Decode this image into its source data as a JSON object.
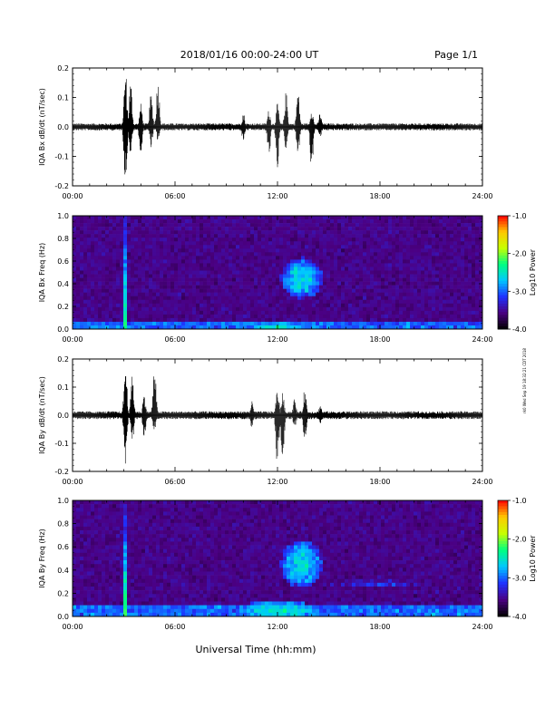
{
  "header": {
    "title": "2018/01/16  00:00-24:00 UT",
    "page": "Page 1/1"
  },
  "side_note": "rk0 Wed Sep 19 18:32:21 CDT 2018",
  "xaxis": {
    "label": "Universal Time (hh:mm)",
    "tick_labels": [
      "00:00",
      "06:00",
      "12:00",
      "18:00",
      "24:00"
    ],
    "range_hours": [
      0,
      24
    ]
  },
  "colors": {
    "trace": "#000000",
    "spectrogram_background": "#3a1a9c"
  },
  "chart_data": [
    {
      "type": "line",
      "name": "bx_dbdt",
      "ylabel": "IQA Bx dB/dt (nT/sec)",
      "ylim": [
        -0.2,
        0.2
      ],
      "ytick_labels": [
        "0.2",
        "0.1",
        "0.0",
        "-0.1",
        "-0.2"
      ],
      "ytick_values": [
        0.2,
        0.1,
        0.0,
        -0.1,
        -0.2
      ],
      "baseline_amplitude": 0.012,
      "bursts": [
        {
          "t": 3.1,
          "pos": 0.2,
          "neg": -0.2
        },
        {
          "t": 3.4,
          "pos": 0.16,
          "neg": -0.1
        },
        {
          "t": 4.0,
          "pos": 0.08,
          "neg": -0.1
        },
        {
          "t": 4.6,
          "pos": 0.12,
          "neg": -0.07
        },
        {
          "t": 5.0,
          "pos": 0.17,
          "neg": -0.05
        },
        {
          "t": 10.0,
          "pos": 0.05,
          "neg": -0.05
        },
        {
          "t": 11.5,
          "pos": 0.06,
          "neg": -0.1
        },
        {
          "t": 12.0,
          "pos": 0.08,
          "neg": -0.14
        },
        {
          "t": 12.5,
          "pos": 0.12,
          "neg": -0.08
        },
        {
          "t": 13.2,
          "pos": 0.13,
          "neg": -0.1
        },
        {
          "t": 14.0,
          "pos": 0.07,
          "neg": -0.15
        },
        {
          "t": 14.5,
          "pos": 0.05,
          "neg": -0.04
        }
      ]
    },
    {
      "type": "heatmap",
      "name": "bx_spectrogram",
      "ylabel": "IQA Bx Freq (Hz)",
      "ylim": [
        0.0,
        1.0
      ],
      "ytick_labels": [
        "1.0",
        "0.8",
        "0.6",
        "0.4",
        "0.2",
        "0.0"
      ],
      "ytick_values": [
        1.0,
        0.8,
        0.6,
        0.4,
        0.2,
        0.0
      ],
      "colorbar": {
        "label": "Log10 Power",
        "range": [
          -4.0,
          -1.0
        ],
        "tick_labels": [
          "-1.0",
          "-2.0",
          "-3.0",
          "-4.0"
        ],
        "tick_values": [
          -1.0,
          -2.0,
          -3.0,
          -4.0
        ],
        "palette": [
          "#000000",
          "#4b0082",
          "#1e32ff",
          "#00c8ff",
          "#00ff80",
          "#c8ff00",
          "#ffc800",
          "#ff0000"
        ]
      },
      "features": [
        {
          "kind": "low_freq_band",
          "f_max": 0.05,
          "power": -3.0
        },
        {
          "kind": "vertical_spike",
          "t": 3.1,
          "power": -2.2
        },
        {
          "kind": "blob",
          "t": 13.4,
          "f": 0.45,
          "dt": 1.2,
          "df": 0.18,
          "power": -2.6
        },
        {
          "kind": "blob",
          "t": 12.0,
          "f": 0.02,
          "dt": 2.0,
          "df": 0.04,
          "power": -2.6
        }
      ]
    },
    {
      "type": "line",
      "name": "by_dbdt",
      "ylabel": "IQA By dB/dt (nT/sec)",
      "ylim": [
        -0.2,
        0.2
      ],
      "ytick_labels": [
        "0.2",
        "0.1",
        "0.0",
        "-0.1",
        "-0.2"
      ],
      "ytick_values": [
        0.2,
        0.1,
        0.0,
        -0.1,
        -0.2
      ],
      "baseline_amplitude": 0.014,
      "bursts": [
        {
          "t": 3.1,
          "pos": 0.2,
          "neg": -0.2
        },
        {
          "t": 3.5,
          "pos": 0.15,
          "neg": -0.1
        },
        {
          "t": 4.2,
          "pos": 0.08,
          "neg": -0.08
        },
        {
          "t": 4.8,
          "pos": 0.18,
          "neg": -0.06
        },
        {
          "t": 10.5,
          "pos": 0.05,
          "neg": -0.05
        },
        {
          "t": 12.0,
          "pos": 0.1,
          "neg": -0.2
        },
        {
          "t": 12.3,
          "pos": 0.08,
          "neg": -0.2
        },
        {
          "t": 13.0,
          "pos": 0.06,
          "neg": -0.05
        },
        {
          "t": 13.6,
          "pos": 0.1,
          "neg": -0.1
        },
        {
          "t": 14.5,
          "pos": 0.04,
          "neg": -0.03
        }
      ]
    },
    {
      "type": "heatmap",
      "name": "by_spectrogram",
      "ylabel": "IQA By Freq (Hz)",
      "ylim": [
        0.0,
        1.0
      ],
      "ytick_labels": [
        "1.0",
        "0.8",
        "0.6",
        "0.4",
        "0.2",
        "0.0"
      ],
      "ytick_values": [
        1.0,
        0.8,
        0.6,
        0.4,
        0.2,
        0.0
      ],
      "colorbar": {
        "label": "Log10 Power",
        "range": [
          -4.0,
          -1.0
        ],
        "tick_labels": [
          "-1.0",
          "-2.0",
          "-3.0",
          "-4.0"
        ],
        "tick_values": [
          -1.0,
          -2.0,
          -3.0,
          -4.0
        ],
        "palette": [
          "#000000",
          "#4b0082",
          "#1e32ff",
          "#00c8ff",
          "#00ff80",
          "#c8ff00",
          "#ffc800",
          "#ff0000"
        ]
      },
      "features": [
        {
          "kind": "low_freq_band",
          "f_max": 0.08,
          "power": -3.0
        },
        {
          "kind": "vertical_spike",
          "t": 3.1,
          "power": -2.2
        },
        {
          "kind": "blob",
          "t": 13.4,
          "f": 0.45,
          "dt": 1.2,
          "df": 0.2,
          "power": -2.6
        },
        {
          "kind": "blob",
          "t": 12.0,
          "f": 0.05,
          "dt": 2.5,
          "df": 0.08,
          "power": -2.5
        },
        {
          "kind": "blob",
          "t": 18.0,
          "f": 0.28,
          "dt": 3.5,
          "df": 0.04,
          "power": -3.2
        }
      ]
    }
  ]
}
